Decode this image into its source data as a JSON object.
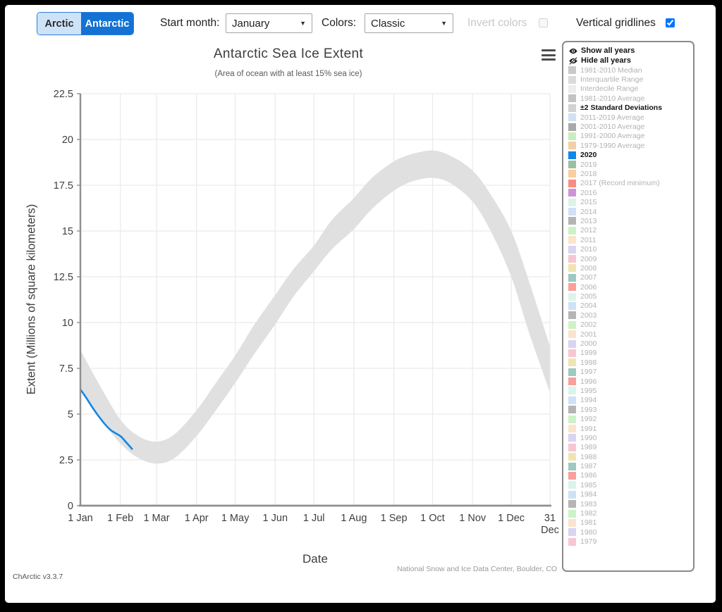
{
  "toolbar": {
    "arctic_label": "Arctic",
    "antarctic_label": "Antarctic",
    "active_tab": "Antarctic",
    "start_month_label": "Start month:",
    "start_month_value": "January",
    "colors_label": "Colors:",
    "colors_value": "Classic",
    "invert_colors_label": "Invert colors",
    "invert_colors_checked": false,
    "invert_colors_enabled": false,
    "vertical_gridlines_label": "Vertical gridlines",
    "vertical_gridlines_checked": true,
    "accent_color": "#1372d4"
  },
  "chart": {
    "title": "Antarctic Sea Ice Extent",
    "subtitle": "(Area of ocean with at least 15% sea ice)",
    "xlabel": "Date",
    "ylabel": "Extent (Millions of square kilometers)",
    "credit": "National Snow and Ice Data Center, Boulder, CO",
    "version": "ChArctic v3.3.7"
  },
  "chart_data": {
    "type": "line",
    "title": "Antarctic Sea Ice Extent",
    "subtitle": "(Area of ocean with at least 15% sea ice)",
    "xlabel": "Date",
    "ylabel": "Extent (Millions of square kilometers)",
    "ylim": [
      0,
      22.5
    ],
    "y_ticks": [
      0,
      2.5,
      5,
      7.5,
      10,
      12.5,
      15,
      17.5,
      20,
      22.5
    ],
    "x_ticks": [
      {
        "day": 1,
        "label": "1 Jan"
      },
      {
        "day": 32,
        "label": "1 Feb"
      },
      {
        "day": 60,
        "label": "1 Mar"
      },
      {
        "day": 91,
        "label": "1 Apr"
      },
      {
        "day": 121,
        "label": "1 May"
      },
      {
        "day": 152,
        "label": "1 Jun"
      },
      {
        "day": 182,
        "label": "1 Jul"
      },
      {
        "day": 213,
        "label": "1 Aug"
      },
      {
        "day": 244,
        "label": "1 Sep"
      },
      {
        "day": 274,
        "label": "1 Oct"
      },
      {
        "day": 305,
        "label": "1 Nov"
      },
      {
        "day": 335,
        "label": "1 Dec"
      },
      {
        "day": 365,
        "label": "31 Dec",
        "wrap": true
      }
    ],
    "grid": {
      "horizontal": true,
      "vertical": true,
      "color": "#ebebeb"
    },
    "axis_color": "#8f8f8f",
    "band": {
      "name": "±2 Standard Deviations",
      "color": "#e0e0e0",
      "days": [
        1,
        15,
        32,
        46,
        60,
        74,
        91,
        105,
        121,
        135,
        152,
        166,
        182,
        196,
        213,
        227,
        244,
        258,
        274,
        288,
        305,
        319,
        335,
        349,
        365
      ],
      "upper": [
        8.5,
        6.7,
        4.7,
        3.8,
        3.5,
        3.9,
        5.2,
        6.6,
        8.2,
        9.8,
        11.5,
        12.9,
        14.2,
        15.6,
        16.8,
        17.9,
        18.8,
        19.2,
        19.4,
        19.1,
        18.3,
        17.0,
        15.0,
        12.2,
        8.7
      ],
      "lower": [
        6.4,
        4.9,
        3.4,
        2.6,
        2.3,
        2.6,
        3.8,
        5.1,
        6.7,
        8.2,
        9.9,
        11.4,
        12.8,
        14.0,
        15.1,
        16.2,
        17.2,
        17.7,
        17.9,
        17.6,
        16.6,
        15.0,
        12.5,
        9.4,
        6.2
      ]
    },
    "series": [
      {
        "name": "2020",
        "color": "#0f88e8",
        "days": [
          1,
          5,
          10,
          15,
          20,
          25,
          32,
          36,
          41
        ],
        "values": [
          6.35,
          5.95,
          5.4,
          4.9,
          4.45,
          4.1,
          3.8,
          3.5,
          3.1
        ]
      }
    ]
  },
  "legend": {
    "show_all_label": "Show all years",
    "hide_all_label": "Hide all years",
    "icons": {
      "show": "eye-icon",
      "hide": "eye-slash-icon",
      "menu": "hamburger-menu-icon"
    },
    "items": [
      {
        "label": "1981-2010 Median",
        "color": "#c9c9c9",
        "bold": false
      },
      {
        "label": "Interquartile Range",
        "color": "#dbdbdb",
        "bold": false
      },
      {
        "label": "Interdecile Range",
        "color": "#ededed",
        "bold": false
      },
      {
        "label": "1981-2010 Average",
        "color": "#c3c3c3",
        "bold": false
      },
      {
        "label": "±2 Standard Deviations",
        "color": "#d2d2d2",
        "bold": true
      },
      {
        "label": "2011-2019 Average",
        "color": "#cfe1f4",
        "bold": false
      },
      {
        "label": "2001-2010 Average",
        "color": "#a9a9a9",
        "bold": false
      },
      {
        "label": "1991-2000 Average",
        "color": "#c9ecc1",
        "bold": false
      },
      {
        "label": "1979-1990 Average",
        "color": "#f6cda4",
        "bold": false
      },
      {
        "label": "2020",
        "color": "#0f88e8",
        "bold": true
      },
      {
        "label": "2019",
        "color": "#9cbfa2",
        "bold": false
      },
      {
        "label": "2018",
        "color": "#fbce9c",
        "bold": false
      },
      {
        "label": "2017 (Record minimum)",
        "color": "#f98d81",
        "bold": false
      },
      {
        "label": "2016",
        "color": "#d092d8",
        "bold": false
      },
      {
        "label": "2015",
        "color": "#d9f5ea",
        "bold": false
      },
      {
        "label": "2014",
        "color": "#cfe1f6",
        "bold": false
      },
      {
        "label": "2013",
        "color": "#b5b5b5",
        "bold": false
      },
      {
        "label": "2012",
        "color": "#cdf2c8",
        "bold": false
      },
      {
        "label": "2011",
        "color": "#fbe4cb",
        "bold": false
      },
      {
        "label": "2010",
        "color": "#d8d4f1",
        "bold": false
      },
      {
        "label": "2009",
        "color": "#f8c6d2",
        "bold": false
      },
      {
        "label": "2008",
        "color": "#f0e5b2",
        "bold": false
      },
      {
        "label": "2007",
        "color": "#9dc9c1",
        "bold": false
      },
      {
        "label": "2006",
        "color": "#fb9f9a",
        "bold": false
      },
      {
        "label": "2005",
        "color": "#d9f5ea",
        "bold": false
      },
      {
        "label": "2004",
        "color": "#cfe1f6",
        "bold": false
      },
      {
        "label": "2003",
        "color": "#b5b5b5",
        "bold": false
      },
      {
        "label": "2002",
        "color": "#cdf2c8",
        "bold": false
      },
      {
        "label": "2001",
        "color": "#fbe4cb",
        "bold": false
      },
      {
        "label": "2000",
        "color": "#d8d4f1",
        "bold": false
      },
      {
        "label": "1999",
        "color": "#f8c6d2",
        "bold": false
      },
      {
        "label": "1998",
        "color": "#f0e5b2",
        "bold": false
      },
      {
        "label": "1997",
        "color": "#9dc9c1",
        "bold": false
      },
      {
        "label": "1996",
        "color": "#fb9f9a",
        "bold": false
      },
      {
        "label": "1995",
        "color": "#d9f5ea",
        "bold": false
      },
      {
        "label": "1994",
        "color": "#cfe1f6",
        "bold": false
      },
      {
        "label": "1993",
        "color": "#b5b5b5",
        "bold": false
      },
      {
        "label": "1992",
        "color": "#cdf2c8",
        "bold": false
      },
      {
        "label": "1991",
        "color": "#fbe4cb",
        "bold": false
      },
      {
        "label": "1990",
        "color": "#d8d4f1",
        "bold": false
      },
      {
        "label": "1989",
        "color": "#f8c6d2",
        "bold": false
      },
      {
        "label": "1988",
        "color": "#f0e5b2",
        "bold": false
      },
      {
        "label": "1987",
        "color": "#9dc9c1",
        "bold": false
      },
      {
        "label": "1986",
        "color": "#fb9f9a",
        "bold": false
      },
      {
        "label": "1985",
        "color": "#d9f5ea",
        "bold": false
      },
      {
        "label": "1984",
        "color": "#cfe1f6",
        "bold": false
      },
      {
        "label": "1983",
        "color": "#b5b5b5",
        "bold": false
      },
      {
        "label": "1982",
        "color": "#cdf2c8",
        "bold": false
      },
      {
        "label": "1981",
        "color": "#fbe4cb",
        "bold": false
      },
      {
        "label": "1980",
        "color": "#d8d4f1",
        "bold": false
      },
      {
        "label": "1979",
        "color": "#f8c6d2",
        "bold": false
      }
    ]
  }
}
